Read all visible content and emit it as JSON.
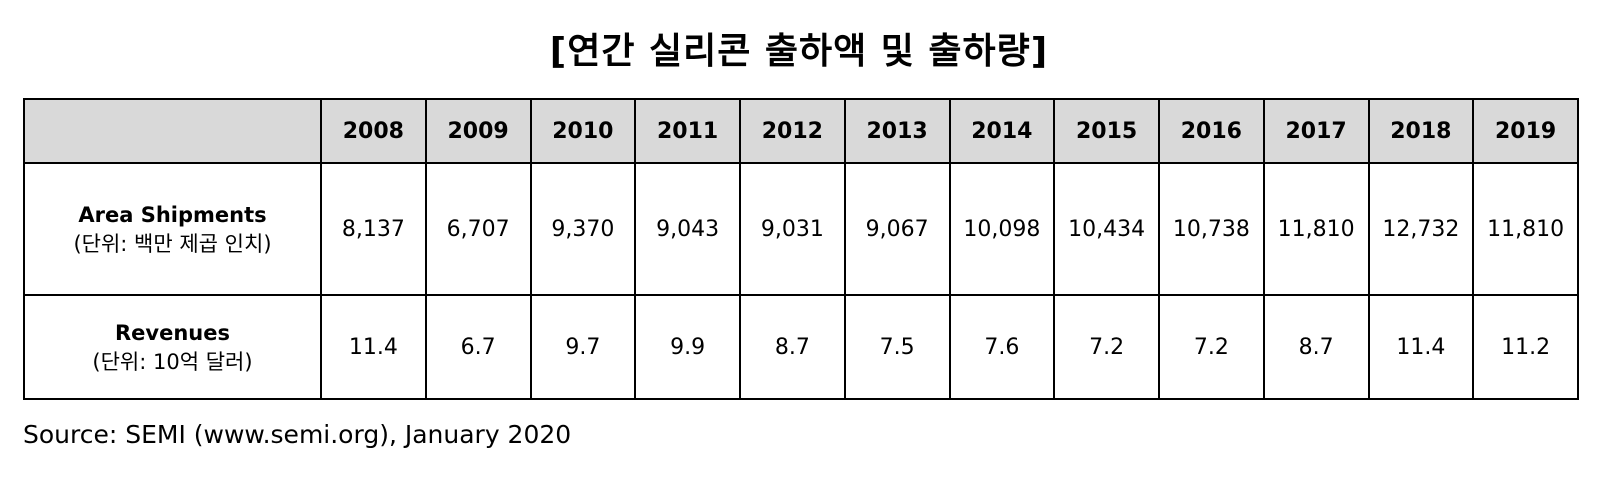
{
  "chart_data": {
    "type": "table",
    "title": "[연간 실리콘 출하액 및 출하량]",
    "columns": [
      "2008",
      "2009",
      "2010",
      "2011",
      "2012",
      "2013",
      "2014",
      "2015",
      "2016",
      "2017",
      "2018",
      "2019"
    ],
    "rows": [
      {
        "label": "Area Shipments",
        "unit": "(단위: 백만 제곱 인치)",
        "values": [
          "8,137",
          "6,707",
          "9,370",
          "9,043",
          "9,031",
          "9,067",
          "10,098",
          "10,434",
          "10,738",
          "11,810",
          "12,732",
          "11,810"
        ]
      },
      {
        "label": "Revenues",
        "unit": "(단위: 10억 달러)",
        "values": [
          "11.4",
          "6.7",
          "9.7",
          "9.9",
          "8.7",
          "7.5",
          "7.6",
          "7.2",
          "7.2",
          "8.7",
          "11.4",
          "11.2"
        ]
      }
    ],
    "header_color": "#d9d9d9"
  },
  "source": "Source: SEMI (www.semi.org), January 2020"
}
